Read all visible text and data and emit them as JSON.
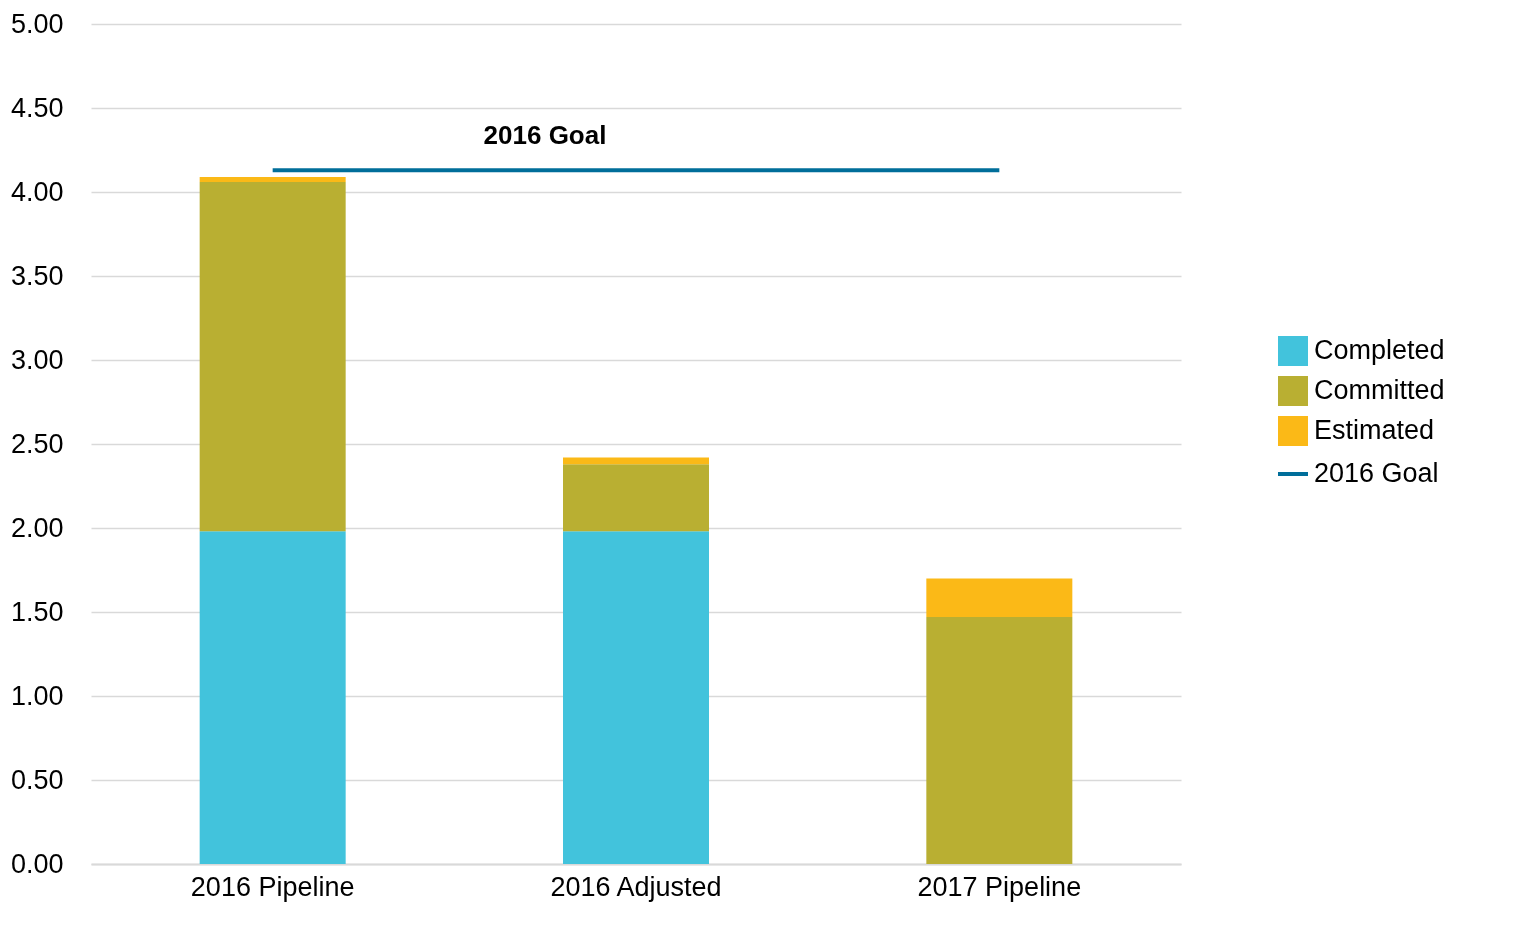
{
  "chart_data": {
    "type": "bar",
    "stacked": true,
    "categories": [
      "2016 Pipeline",
      "2016 Adjusted",
      "2017 Pipeline"
    ],
    "series": [
      {
        "name": "Completed",
        "color": "#42c3dc",
        "values": [
          1.98,
          1.98,
          0
        ]
      },
      {
        "name": "Committed",
        "color": "#b9af32",
        "values": [
          2.08,
          0.4,
          1.47
        ]
      },
      {
        "name": "Estimated",
        "color": "#fbb917",
        "values": [
          0.03,
          0.04,
          0.23
        ]
      },
      {
        "name": "2016 Goal",
        "type": "line",
        "color": "#006e9a",
        "values": [
          4.13,
          4.13,
          4.13
        ]
      }
    ],
    "ylim": [
      0,
      5
    ],
    "yticks": [
      {
        "value": 0,
        "label": "0.00"
      },
      {
        "value": 0.5,
        "label": "0.50"
      },
      {
        "value": 1,
        "label": "1.00"
      },
      {
        "value": 1.5,
        "label": "1.50"
      },
      {
        "value": 2,
        "label": "2.00"
      },
      {
        "value": 2.5,
        "label": "2.50"
      },
      {
        "value": 3,
        "label": "3.00"
      },
      {
        "value": 3.5,
        "label": "3.50"
      },
      {
        "value": 4,
        "label": "4.00"
      },
      {
        "value": 4.5,
        "label": "4.50"
      },
      {
        "value": 5,
        "label": "5.00"
      }
    ],
    "annotations": [
      "2016 Goal"
    ],
    "grid": "y",
    "legend": "right"
  }
}
